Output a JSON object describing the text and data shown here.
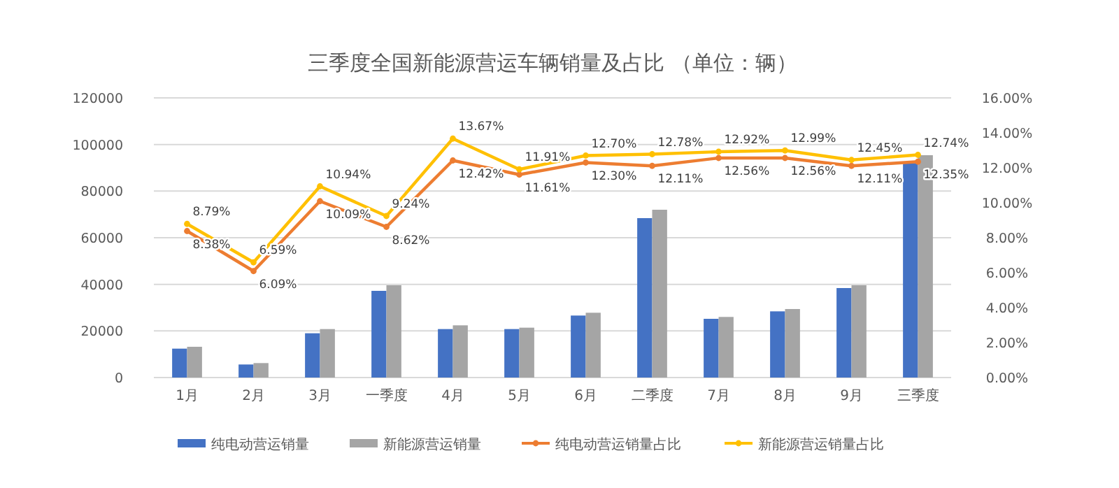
{
  "chart_data": {
    "type": "bar",
    "title": "三季度全国新能源营运车辆销量及占比 （单位：辆）",
    "categories": [
      "1月",
      "2月",
      "3月",
      "一季度",
      "4月",
      "5月",
      "6月",
      "二季度",
      "7月",
      "8月",
      "9月",
      "三季度"
    ],
    "series": [
      {
        "name": "纯电动营运销量",
        "color": "#4472c4",
        "values": [
          12400,
          5600,
          19000,
          37200,
          20800,
          20800,
          26600,
          68400,
          25200,
          28400,
          38400,
          92000
        ]
      },
      {
        "name": "新能源营运销量",
        "color": "#a5a5a5",
        "values": [
          13200,
          6200,
          20800,
          39600,
          22400,
          21400,
          27800,
          72000,
          26000,
          29400,
          39600,
          95400
        ]
      },
      {
        "name": "纯电动营运销量占比",
        "type": "line",
        "axis": "y2",
        "color": "#ed7d31",
        "values": [
          8.38,
          6.09,
          10.09,
          8.62,
          12.42,
          11.61,
          12.3,
          12.11,
          12.56,
          12.56,
          12.11,
          12.35
        ],
        "value_labels": [
          "8.38%",
          "6.09%",
          "10.09%",
          "8.62%",
          "12.42%",
          "11.61%",
          "12.30%",
          "12.11%",
          "12.56%",
          "12.56%",
          "12.11%",
          "12.35%"
        ]
      },
      {
        "name": "新能源营运销量占比",
        "type": "line",
        "axis": "y2",
        "color": "#ffc000",
        "values": [
          8.79,
          6.59,
          10.94,
          9.24,
          13.67,
          11.91,
          12.7,
          12.78,
          12.92,
          12.99,
          12.45,
          12.74
        ],
        "value_labels": [
          "8.79%",
          "6.59%",
          "10.94%",
          "9.24%",
          "13.67%",
          "11.91%",
          "12.70%",
          "12.78%",
          "12.92%",
          "12.99%",
          "12.45%",
          "12.74%"
        ]
      }
    ],
    "ylim": [
      0,
      120000
    ],
    "yticks": [
      0,
      20000,
      40000,
      60000,
      80000,
      100000,
      120000
    ],
    "y2lim": [
      0,
      16
    ],
    "y2ticks": [
      {
        "value": 0,
        "label": "0.00%"
      },
      {
        "value": 2,
        "label": "2.00%"
      },
      {
        "value": 4,
        "label": "4.00%"
      },
      {
        "value": 6,
        "label": "6.00%"
      },
      {
        "value": 8,
        "label": "8.00%"
      },
      {
        "value": 10,
        "label": "10.00%"
      },
      {
        "value": 12,
        "label": "12.00%"
      },
      {
        "value": 14,
        "label": "14.00%"
      },
      {
        "value": 16,
        "label": "16.00%"
      }
    ],
    "grid": "y",
    "legend": "bottom",
    "marker": "circle",
    "line_style": "solid"
  }
}
